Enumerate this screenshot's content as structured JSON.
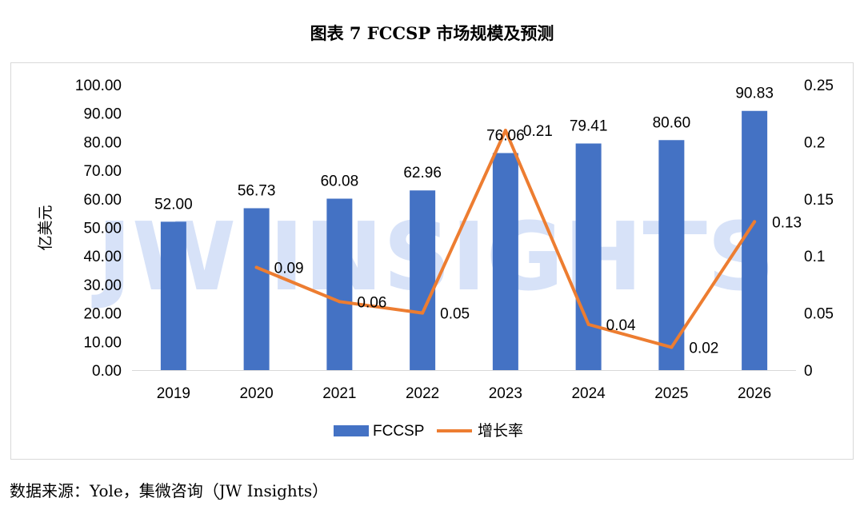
{
  "page": {
    "title": "图表 7 FCCSP  市场规模及预测",
    "source": "数据来源：Yole，集微咨询（JW Insights）",
    "watermark": "JW INSIGHTS"
  },
  "chart_data": {
    "type": "bar",
    "categories": [
      "2019",
      "2020",
      "2021",
      "2022",
      "2023",
      "2024",
      "2025",
      "2026"
    ],
    "series": [
      {
        "name": "FCCSP",
        "type": "bar",
        "axis": "left",
        "values": [
          52.0,
          56.73,
          60.08,
          62.96,
          76.06,
          79.41,
          80.6,
          90.83
        ],
        "labels": [
          "52.00",
          "56.73",
          "60.08",
          "62.96",
          "76.06",
          "79.41",
          "80.60",
          "90.83"
        ],
        "color": "#4472C4"
      },
      {
        "name": "增长率",
        "type": "line",
        "axis": "right",
        "values": [
          null,
          0.09,
          0.06,
          0.05,
          0.21,
          0.04,
          0.02,
          0.13
        ],
        "labels": [
          "",
          "0.09",
          "0.06",
          "0.05",
          "0.21",
          "0.04",
          "0.02",
          "0.13"
        ],
        "color": "#ED7D31"
      }
    ],
    "ylabel": "亿美元",
    "ylim": [
      0,
      100
    ],
    "yticks": [
      "0.00",
      "10.00",
      "20.00",
      "30.00",
      "40.00",
      "50.00",
      "60.00",
      "70.00",
      "80.00",
      "90.00",
      "100.00"
    ],
    "y2lim": [
      0,
      0.25
    ],
    "y2ticks": [
      "0",
      "0.05",
      "0.1",
      "0.15",
      "0.2",
      "0.25"
    ],
    "grid": false,
    "legend": "bottom"
  }
}
